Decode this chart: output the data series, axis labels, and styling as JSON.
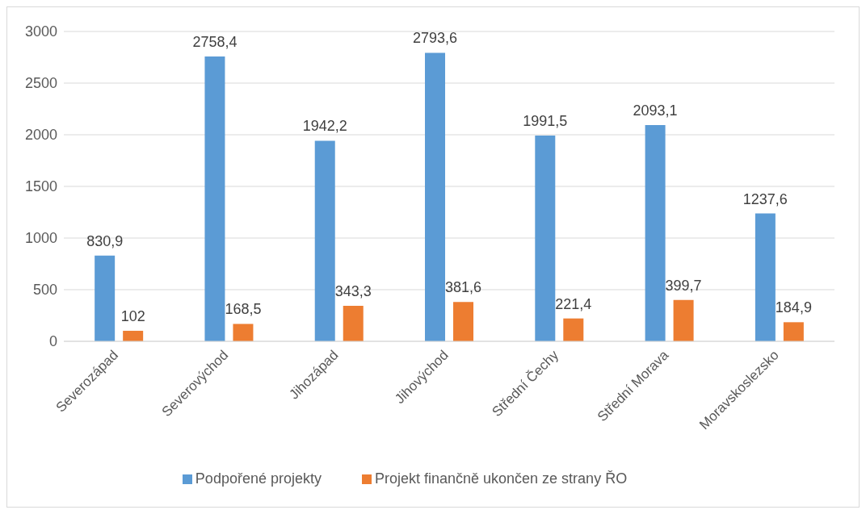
{
  "chart_data": {
    "type": "bar",
    "categories": [
      "Severozápad",
      "Severovýchod",
      "Jihozápad",
      "Jihovýchod",
      "Střední Čechy",
      "Střední Morava",
      "Moravskoslezsko"
    ],
    "series": [
      {
        "name": "Podpořené projekty",
        "color": "#5b9bd5",
        "values": [
          830.9,
          2758.4,
          1942.2,
          2793.6,
          1991.5,
          2093.1,
          1237.6
        ],
        "value_labels": [
          "830,9",
          "2758,4",
          "1942,2",
          "2793,6",
          "1991,5",
          "2093,1",
          "1237,6"
        ]
      },
      {
        "name": "Projekt finančně ukončen ze strany ŘO",
        "color": "#ed7d31",
        "values": [
          102,
          168.5,
          343.3,
          381.6,
          221.4,
          399.7,
          184.9
        ],
        "value_labels": [
          "102",
          "168,5",
          "343,3",
          "381,6",
          "221,4",
          "399,7",
          "184,9"
        ]
      }
    ],
    "ylim": [
      0,
      3000
    ],
    "yticks": [
      0,
      500,
      1000,
      1500,
      2000,
      2500,
      3000
    ],
    "grid": "y",
    "legend": "bottom"
  }
}
